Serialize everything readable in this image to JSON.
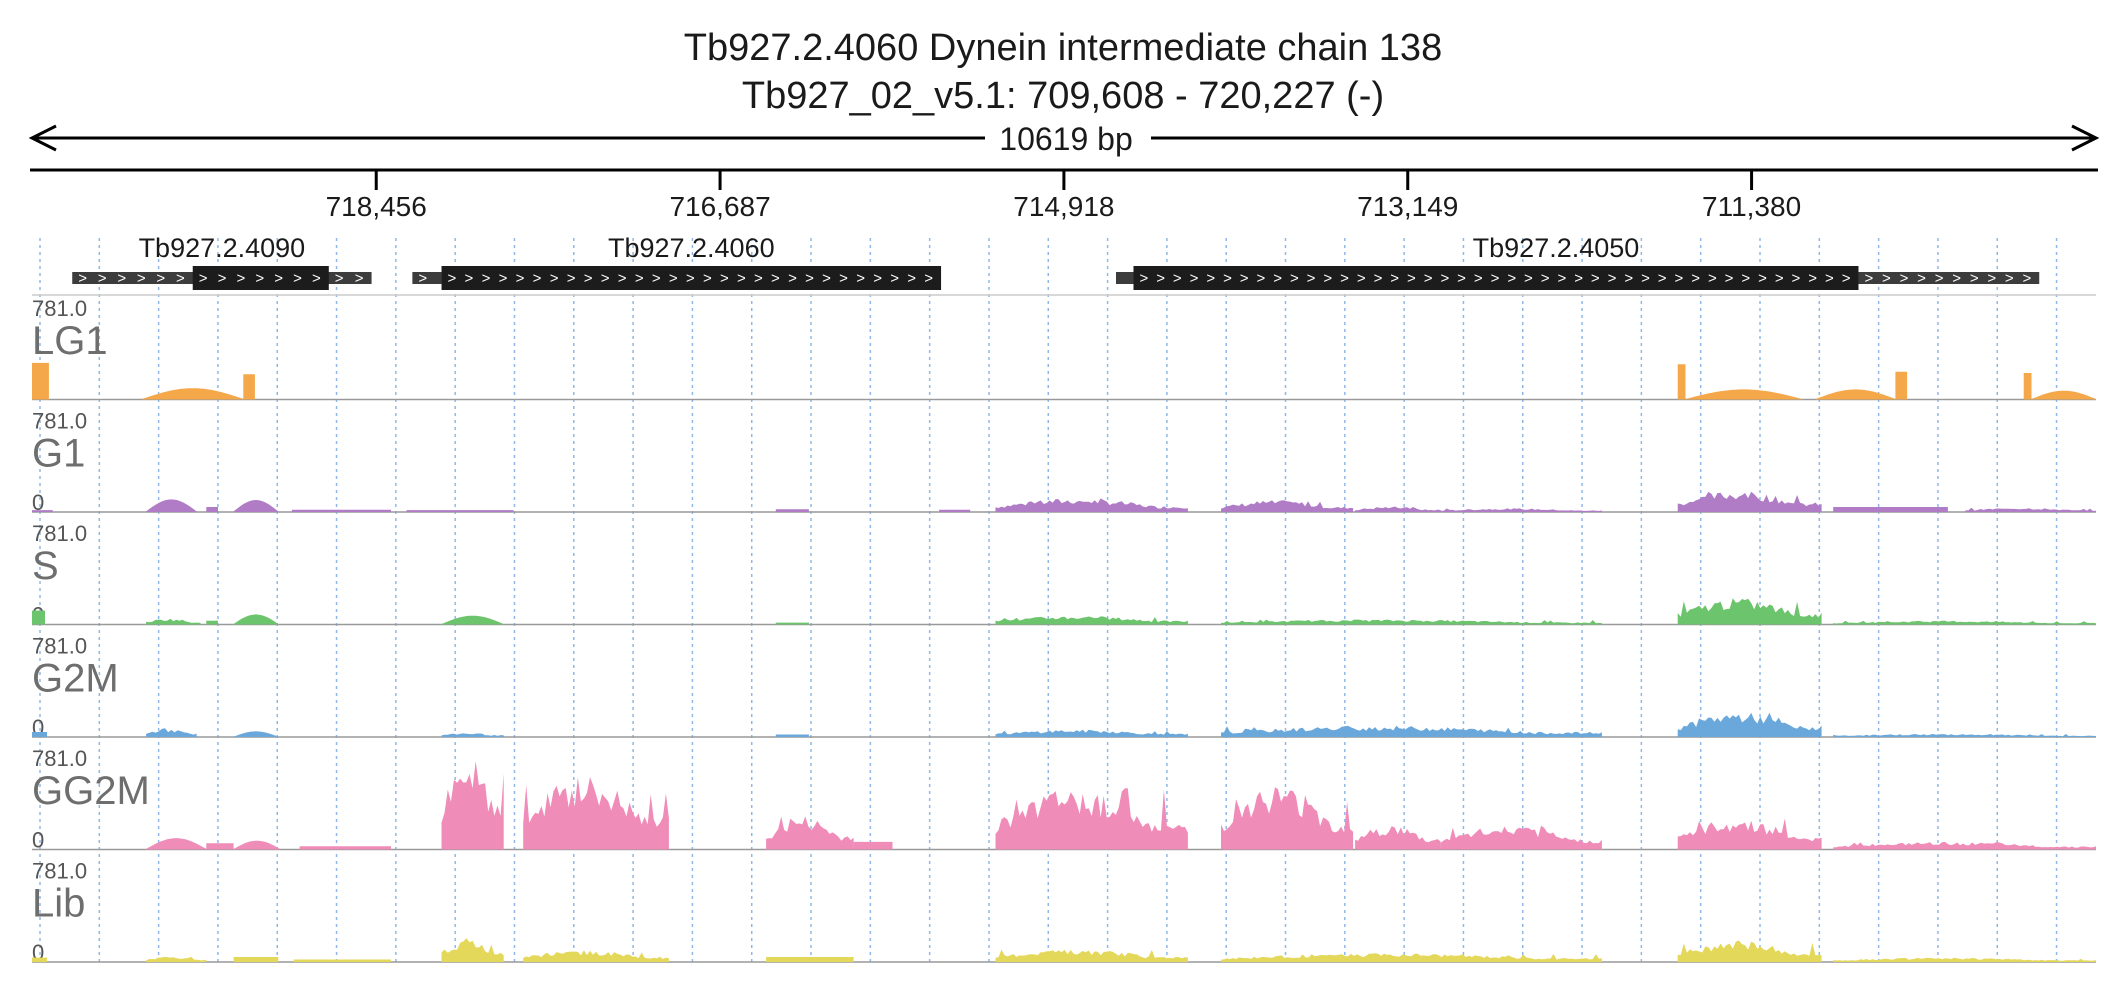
{
  "header": {
    "title": "Tb927.2.4060  Dynein intermediate chain 138",
    "location": "Tb927_02_v5.1: 709,608 - 720,227 (-)",
    "span": "10619 bp"
  },
  "chart_data": {
    "type": "area",
    "region": {
      "chromosome": "Tb927_02_v5.1",
      "start": 709608,
      "end": 720227,
      "strand": "-"
    },
    "x_reversed": true,
    "ruler": {
      "ticks": [
        {
          "value": 718456,
          "label": "718,456"
        },
        {
          "value": 716687,
          "label": "716,687"
        },
        {
          "value": 714918,
          "label": "714,918"
        },
        {
          "value": 713149,
          "label": "713,149"
        },
        {
          "value": 711380,
          "label": "711,380"
        }
      ],
      "grid": "dotted",
      "grid_color": "#8fb8e8"
    },
    "genes": [
      {
        "name": "Tb927.2.4090",
        "utr": [
          718700,
          720227
        ],
        "cds": [
          719400,
          718700
        ],
        "utr_start": 720020,
        "utr_end": 718480
      },
      {
        "name": "Tb927.2.4060",
        "utr_start": 718270,
        "utr_end": 718120,
        "cds": [
          718120,
          715550
        ]
      },
      {
        "name": "Tb927.2.4050",
        "utr_start": 714650,
        "utr_end": 714560,
        "cds": [
          714560,
          710830
        ],
        "utr_end2": 709900
      }
    ],
    "tracks": [
      {
        "name": "LG1",
        "color": "#f5a84a",
        "ymax": 781.0,
        "ymax_label": "781.0",
        "ymin_label": "0",
        "peaks": [
          {
            "from": 720227,
            "to": 720140,
            "value": 290,
            "shape": "flat"
          },
          {
            "from": 719660,
            "to": 719140,
            "value": 90,
            "shape": "hump"
          },
          {
            "from": 719140,
            "to": 719080,
            "value": 200,
            "shape": "flat"
          },
          {
            "from": 711760,
            "to": 711720,
            "value": 280,
            "shape": "flat"
          },
          {
            "from": 711720,
            "to": 711120,
            "value": 80,
            "shape": "hump"
          },
          {
            "from": 711050,
            "to": 710640,
            "value": 80,
            "shape": "hump"
          },
          {
            "from": 710640,
            "to": 710580,
            "value": 220,
            "shape": "flat"
          },
          {
            "from": 709980,
            "to": 709940,
            "value": 210,
            "shape": "flat"
          },
          {
            "from": 709940,
            "to": 709608,
            "value": 70,
            "shape": "hump"
          }
        ]
      },
      {
        "name": "G1",
        "color": "#b07cc6",
        "ymax": 781.0,
        "ymax_label": "781.0",
        "ymin_label": "0",
        "peaks": [
          {
            "from": 720227,
            "to": 720120,
            "value": 15,
            "shape": "flat"
          },
          {
            "from": 719640,
            "to": 719380,
            "value": 100,
            "shape": "hump"
          },
          {
            "from": 719330,
            "to": 719270,
            "value": 40,
            "shape": "flat"
          },
          {
            "from": 719190,
            "to": 718960,
            "value": 95,
            "shape": "hump"
          },
          {
            "from": 718890,
            "to": 718380,
            "value": 18,
            "shape": "flat"
          },
          {
            "from": 718300,
            "to": 717750,
            "value": 15,
            "shape": "flat"
          },
          {
            "from": 716400,
            "to": 716230,
            "value": 22,
            "shape": "flat"
          },
          {
            "from": 715560,
            "to": 715400,
            "value": 18,
            "shape": "flat"
          },
          {
            "from": 715270,
            "to": 714280,
            "value": 110,
            "shape": "jagged"
          },
          {
            "from": 714110,
            "to": 713430,
            "value": 95,
            "shape": "jagged"
          },
          {
            "from": 713420,
            "to": 712980,
            "value": 45,
            "shape": "jagged"
          },
          {
            "from": 712980,
            "to": 712150,
            "value": 30,
            "shape": "jagged"
          },
          {
            "from": 711760,
            "to": 711020,
            "value": 170,
            "shape": "jagged"
          },
          {
            "from": 710960,
            "to": 710370,
            "value": 40,
            "shape": "flat"
          },
          {
            "from": 710280,
            "to": 709608,
            "value": 35,
            "shape": "jagged"
          }
        ]
      },
      {
        "name": "S",
        "color": "#6cc46c",
        "ymax": 781.0,
        "ymax_label": "781.0",
        "ymin_label": "0",
        "peaks": [
          {
            "from": 720227,
            "to": 720160,
            "value": 110,
            "shape": "flat"
          },
          {
            "from": 719640,
            "to": 719360,
            "value": 50,
            "shape": "jagged"
          },
          {
            "from": 719330,
            "to": 719270,
            "value": 30,
            "shape": "flat"
          },
          {
            "from": 719190,
            "to": 718960,
            "value": 80,
            "shape": "hump"
          },
          {
            "from": 718120,
            "to": 717800,
            "value": 70,
            "shape": "hump"
          },
          {
            "from": 716400,
            "to": 716230,
            "value": 15,
            "shape": "flat"
          },
          {
            "from": 715270,
            "to": 714280,
            "value": 70,
            "shape": "jagged"
          },
          {
            "from": 714110,
            "to": 712150,
            "value": 40,
            "shape": "jagged"
          },
          {
            "from": 711760,
            "to": 711020,
            "value": 210,
            "shape": "jagged"
          },
          {
            "from": 710960,
            "to": 709608,
            "value": 30,
            "shape": "jagged"
          }
        ]
      },
      {
        "name": "G2M",
        "color": "#6aa8dc",
        "ymax": 781.0,
        "ymax_label": "781.0",
        "ymin_label": "0",
        "peaks": [
          {
            "from": 720227,
            "to": 720150,
            "value": 40,
            "shape": "flat"
          },
          {
            "from": 719640,
            "to": 719380,
            "value": 70,
            "shape": "jagged"
          },
          {
            "from": 719190,
            "to": 718960,
            "value": 45,
            "shape": "hump"
          },
          {
            "from": 718120,
            "to": 717800,
            "value": 35,
            "shape": "jagged"
          },
          {
            "from": 716400,
            "to": 716230,
            "value": 20,
            "shape": "flat"
          },
          {
            "from": 715270,
            "to": 714280,
            "value": 60,
            "shape": "jagged"
          },
          {
            "from": 714110,
            "to": 712150,
            "value": 90,
            "shape": "jagged"
          },
          {
            "from": 711760,
            "to": 711020,
            "value": 200,
            "shape": "jagged"
          },
          {
            "from": 710960,
            "to": 709608,
            "value": 25,
            "shape": "jagged"
          }
        ]
      },
      {
        "name": "GG2M",
        "color": "#f08cb8",
        "ymax": 781.0,
        "ymax_label": "781.0",
        "ymin_label": "0",
        "peaks": [
          {
            "from": 719640,
            "to": 719330,
            "value": 90,
            "shape": "hump"
          },
          {
            "from": 719330,
            "to": 719190,
            "value": 50,
            "shape": "flat"
          },
          {
            "from": 719190,
            "to": 718950,
            "value": 70,
            "shape": "hump"
          },
          {
            "from": 718850,
            "to": 718380,
            "value": 25,
            "shape": "flat"
          },
          {
            "from": 718120,
            "to": 717800,
            "value": 781,
            "shape": "jagged"
          },
          {
            "from": 717700,
            "to": 716950,
            "value": 590,
            "shape": "jagged"
          },
          {
            "from": 716450,
            "to": 716000,
            "value": 270,
            "shape": "jagged"
          },
          {
            "from": 716000,
            "to": 715800,
            "value": 60,
            "shape": "flat"
          },
          {
            "from": 715270,
            "to": 714280,
            "value": 490,
            "shape": "jagged"
          },
          {
            "from": 714110,
            "to": 713430,
            "value": 520,
            "shape": "jagged"
          },
          {
            "from": 713420,
            "to": 712980,
            "value": 200,
            "shape": "jagged"
          },
          {
            "from": 712980,
            "to": 712150,
            "value": 190,
            "shape": "jagged"
          },
          {
            "from": 711760,
            "to": 711020,
            "value": 250,
            "shape": "jagged"
          },
          {
            "from": 710960,
            "to": 709608,
            "value": 60,
            "shape": "jagged"
          }
        ]
      },
      {
        "name": "Lib",
        "color": "#e4d85a",
        "ymax": 781.0,
        "ymax_label": "781.0",
        "ymin_label": "0",
        "peaks": [
          {
            "from": 720227,
            "to": 720150,
            "value": 35,
            "shape": "flat"
          },
          {
            "from": 719640,
            "to": 719330,
            "value": 45,
            "shape": "jagged"
          },
          {
            "from": 719190,
            "to": 718960,
            "value": 40,
            "shape": "flat"
          },
          {
            "from": 718880,
            "to": 718380,
            "value": 20,
            "shape": "flat"
          },
          {
            "from": 718120,
            "to": 717800,
            "value": 190,
            "shape": "jagged"
          },
          {
            "from": 717700,
            "to": 716950,
            "value": 95,
            "shape": "jagged"
          },
          {
            "from": 716450,
            "to": 716000,
            "value": 40,
            "shape": "flat"
          },
          {
            "from": 715270,
            "to": 714280,
            "value": 100,
            "shape": "jagged"
          },
          {
            "from": 714110,
            "to": 712150,
            "value": 70,
            "shape": "jagged"
          },
          {
            "from": 711760,
            "to": 711020,
            "value": 170,
            "shape": "jagged"
          },
          {
            "from": 710960,
            "to": 709608,
            "value": 35,
            "shape": "jagged"
          }
        ]
      }
    ]
  }
}
